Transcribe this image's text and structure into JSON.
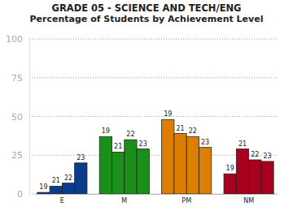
{
  "chart_data": {
    "type": "bar",
    "title": "GRADE 05 - SCIENCE AND TECH/ENG",
    "subtitle": "Percentage of Students by Achievement Level",
    "categories": [
      "E",
      "M",
      "PM",
      "NM"
    ],
    "series": [
      {
        "name": "19",
        "colors": [
          "#0a3c8c",
          "#1a8f1a",
          "#dc7f00",
          "#a8001e"
        ],
        "values": [
          1,
          37,
          48,
          13
        ]
      },
      {
        "name": "21",
        "colors": [
          "#0a3c8c",
          "#1a8f1a",
          "#dc7f00",
          "#a8001e"
        ],
        "values": [
          5,
          27,
          39,
          29
        ]
      },
      {
        "name": "22",
        "colors": [
          "#0a3c8c",
          "#1a8f1a",
          "#dc7f00",
          "#a8001e"
        ],
        "values": [
          7,
          35,
          37,
          22
        ]
      },
      {
        "name": "23",
        "colors": [
          "#0a3c8c",
          "#1a8f1a",
          "#dc7f00",
          "#a8001e"
        ],
        "values": [
          20,
          29,
          30,
          21
        ]
      }
    ],
    "ylim": [
      0,
      100
    ],
    "yticks": [
      0,
      25,
      50,
      75,
      100
    ],
    "grid": true
  }
}
